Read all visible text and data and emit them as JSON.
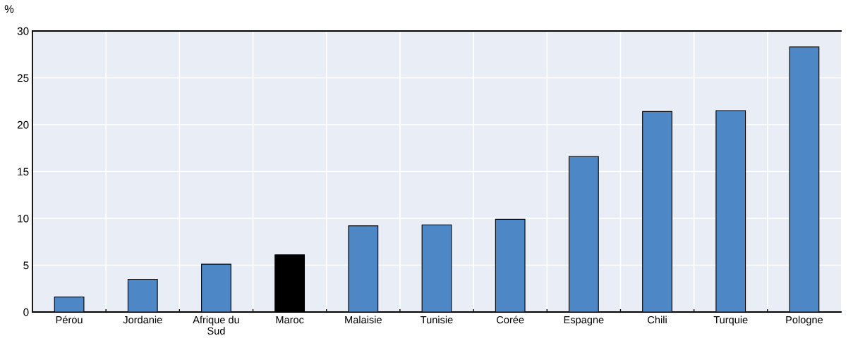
{
  "chart_data": {
    "type": "bar",
    "ylabel": "%",
    "categories": [
      "Pérou",
      "Jordanie",
      "Afrique du Sud",
      "Maroc",
      "Malaisie",
      "Tunisie",
      "Corée",
      "Espagne",
      "Chili",
      "Turquie",
      "Pologne"
    ],
    "values": [
      1.6,
      3.5,
      5.1,
      6.1,
      9.2,
      9.3,
      9.9,
      16.6,
      21.4,
      21.5,
      28.3
    ],
    "colors": [
      "#4e87c6",
      "#4e87c6",
      "#4e87c6",
      "#000000",
      "#4e87c6",
      "#4e87c6",
      "#4e87c6",
      "#4e87c6",
      "#4e87c6",
      "#4e87c6",
      "#4e87c6"
    ],
    "ylim": [
      0,
      30
    ],
    "yticks": [
      0,
      5,
      10,
      15,
      20,
      25,
      30
    ],
    "grid": true
  }
}
